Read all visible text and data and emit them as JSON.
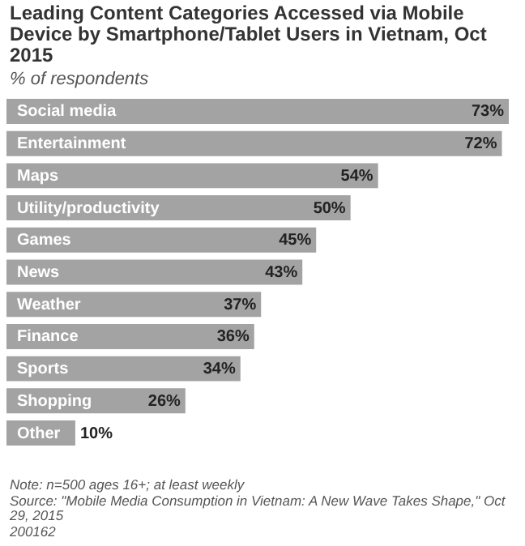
{
  "chart_data": {
    "type": "bar",
    "orientation": "horizontal",
    "title": "Leading Content Categories Accessed via Mobile Device by Smartphone/Tablet Users in Vietnam, Oct 2015",
    "subtitle": "% of respondents",
    "categories": [
      "Social media",
      "Entertainment",
      "Maps",
      "Utility/productivity",
      "Games",
      "News",
      "Weather",
      "Finance",
      "Sports",
      "Shopping",
      "Other"
    ],
    "values": [
      73,
      72,
      54,
      50,
      45,
      43,
      37,
      36,
      34,
      26,
      10
    ],
    "value_labels": [
      "73%",
      "72%",
      "54%",
      "50%",
      "45%",
      "43%",
      "37%",
      "36%",
      "34%",
      "26%",
      "10%"
    ],
    "color": "#a3a3a3",
    "annotations": [
      "Note: n=500 ages 16+; at least weekly",
      "Source: \"Mobile Media Consumption in Vietnam: A New Wave Takes Shape,\" Oct 29, 2015",
      "200162"
    ]
  }
}
